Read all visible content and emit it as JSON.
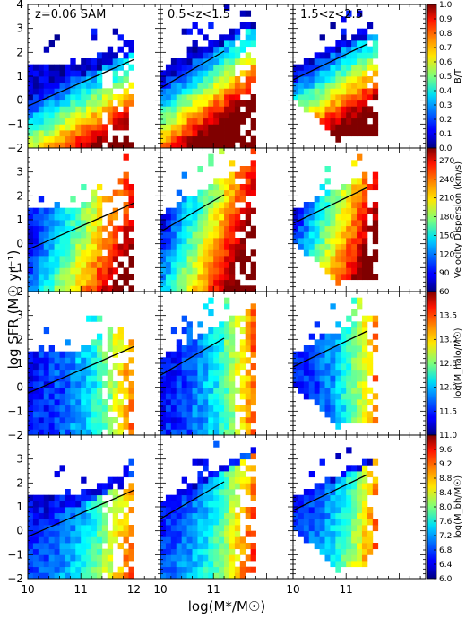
{
  "chart_data": {
    "type": "heatmap",
    "title": "",
    "xlabel": "log(M*/M☉)",
    "ylabel": "log SFR (M☉ yr⁻¹)",
    "xlim": [
      10,
      12.5
    ],
    "ylim": [
      -2,
      4
    ],
    "x_ticks": [
      "10",
      "11",
      "12"
    ],
    "y_ticks": [
      "−2",
      "−1",
      "0",
      "1",
      "2",
      "3",
      "4"
    ],
    "columns": [
      {
        "label": "z=0.06   SAM"
      },
      {
        "label": "0.5<z<1.5"
      },
      {
        "label": "1.5<z<2.5"
      }
    ],
    "rows": [
      {
        "colorbar_label": "B/T",
        "range": [
          0.0,
          1.0
        ],
        "ticks": [
          "0.0",
          "0.1",
          "0.2",
          "0.3",
          "0.4",
          "0.5",
          "0.6",
          "0.7",
          "0.8",
          "0.9",
          "1.0"
        ],
        "colormap": "jet"
      },
      {
        "colorbar_label": "Velocity Dispersion (km/s)",
        "range": [
          60,
          290
        ],
        "ticks": [
          "60",
          "90",
          "120",
          "150",
          "180",
          "210",
          "240",
          "270"
        ],
        "colormap": "jet"
      },
      {
        "colorbar_label": "log(M_halo/M☉)",
        "range": [
          11.0,
          14.0
        ],
        "ticks": [
          "11.0",
          "11.5",
          "12.0",
          "12.5",
          "13.0",
          "13.5"
        ],
        "colormap": "jet"
      },
      {
        "colorbar_label": "log(M_bh/M☉)",
        "range": [
          6.0,
          10.0
        ],
        "ticks": [
          "6.0",
          "6.4",
          "6.8",
          "7.2",
          "7.6",
          "8.0",
          "8.4",
          "8.8",
          "9.2",
          "9.6"
        ],
        "colormap": "jet"
      }
    ],
    "reference_lines": [
      {
        "x": [
          10,
          12
        ],
        "y": [
          -0.25,
          1.7
        ]
      },
      {
        "x": [
          10,
          11.2
        ],
        "y": [
          0.5,
          2.05
        ]
      },
      {
        "x": [
          10,
          11.4
        ],
        "y": [
          0.85,
          2.35
        ]
      }
    ]
  }
}
